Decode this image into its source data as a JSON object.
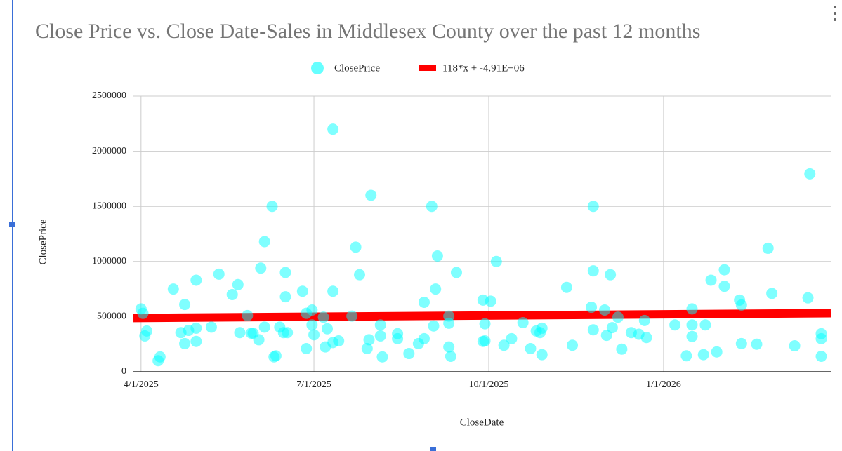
{
  "chart_data": {
    "type": "scatter",
    "title": "Close Price vs. Close Date-Sales in Middlesex County over the past 12 months",
    "xlabel": "CloseDate",
    "ylabel": "ClosePrice",
    "series": [
      {
        "name": "ClosePrice",
        "color": "#00ffff",
        "x": [
          "2025-04-01",
          "2025-04-02",
          "2025-04-03",
          "2025-04-04",
          "2025-04-10",
          "2025-04-11",
          "2025-04-18",
          "2025-04-22",
          "2025-04-24",
          "2025-04-24",
          "2025-04-26",
          "2025-04-30",
          "2025-04-30",
          "2025-04-30",
          "2025-05-08",
          "2025-05-12",
          "2025-05-19",
          "2025-05-22",
          "2025-05-23",
          "2025-05-27",
          "2025-05-29",
          "2025-05-30",
          "2025-06-02",
          "2025-06-03",
          "2025-06-05",
          "2025-06-05",
          "2025-06-09",
          "2025-06-10",
          "2025-06-11",
          "2025-06-13",
          "2025-06-15",
          "2025-06-16",
          "2025-06-16",
          "2025-06-17",
          "2025-06-25",
          "2025-06-27",
          "2025-06-27",
          "2025-06-30",
          "2025-06-30",
          "2025-07-01",
          "2025-07-06",
          "2025-07-07",
          "2025-07-08",
          "2025-07-11",
          "2025-07-11",
          "2025-07-11",
          "2025-07-14",
          "2025-07-21",
          "2025-07-23",
          "2025-07-25",
          "2025-07-29",
          "2025-07-30",
          "2025-07-31",
          "2025-08-05",
          "2025-08-05",
          "2025-08-06",
          "2025-08-14",
          "2025-08-14",
          "2025-08-20",
          "2025-08-25",
          "2025-08-28",
          "2025-08-28",
          "2025-09-01",
          "2025-09-02",
          "2025-09-03",
          "2025-09-04",
          "2025-09-10",
          "2025-09-10",
          "2025-09-10",
          "2025-09-11",
          "2025-09-14",
          "2025-09-28",
          "2025-09-28",
          "2025-09-29",
          "2025-09-29",
          "2025-10-02",
          "2025-10-05",
          "2025-10-09",
          "2025-10-13",
          "2025-10-19",
          "2025-10-23",
          "2025-10-26",
          "2025-10-28",
          "2025-10-29",
          "2025-10-29",
          "2025-11-11",
          "2025-11-14",
          "2025-11-24",
          "2025-11-25",
          "2025-11-25",
          "2025-11-25",
          "2025-12-01",
          "2025-12-02",
          "2025-12-04",
          "2025-12-05",
          "2025-12-08",
          "2025-12-10",
          "2025-12-15",
          "2025-12-19",
          "2025-12-22",
          "2025-12-23",
          "2026-01-07",
          "2026-01-13",
          "2026-01-16",
          "2026-01-16",
          "2026-01-16",
          "2026-01-22",
          "2026-01-23",
          "2026-01-26",
          "2026-01-29",
          "2026-02-02",
          "2026-02-02",
          "2026-02-10",
          "2026-02-11",
          "2026-02-11",
          "2026-02-19",
          "2026-02-25",
          "2026-02-27",
          "2026-03-11",
          "2026-03-18",
          "2026-03-19",
          "2026-03-25",
          "2026-03-25",
          "2026-03-25"
        ],
        "values": [
          570000,
          530000,
          325000,
          370000,
          100000,
          135000,
          750000,
          355000,
          610000,
          255000,
          375000,
          830000,
          395000,
          275000,
          405000,
          885000,
          700000,
          790000,
          355000,
          510000,
          350000,
          350000,
          290000,
          940000,
          1180000,
          405000,
          1500000,
          135000,
          145000,
          405000,
          355000,
          900000,
          680000,
          355000,
          730000,
          210000,
          530000,
          560000,
          425000,
          335000,
          495000,
          225000,
          390000,
          2200000,
          730000,
          265000,
          280000,
          505000,
          1130000,
          880000,
          210000,
          290000,
          1600000,
          425000,
          325000,
          135000,
          345000,
          300000,
          165000,
          255000,
          300000,
          630000,
          1500000,
          415000,
          750000,
          1050000,
          505000,
          440000,
          225000,
          140000,
          900000,
          650000,
          275000,
          435000,
          280000,
          640000,
          1000000,
          240000,
          300000,
          445000,
          210000,
          370000,
          355000,
          395000,
          155000,
          765000,
          240000,
          585000,
          1500000,
          915000,
          380000,
          560000,
          330000,
          880000,
          400000,
          495000,
          205000,
          355000,
          340000,
          465000,
          310000,
          425000,
          145000,
          570000,
          425000,
          320000,
          155000,
          425000,
          830000,
          180000,
          925000,
          775000,
          650000,
          605000,
          255000,
          250000,
          1120000,
          710000,
          235000,
          670000,
          1795000,
          345000,
          300000,
          140000
        ]
      }
    ],
    "trendline": {
      "name": "118*x + -4.91E+06",
      "slope": 118,
      "intercept": -4910000,
      "color": "#ff0000"
    },
    "xlim": [
      "2025-03-28",
      "2026-03-30"
    ],
    "xticks": [
      {
        "value": "2025-04-01",
        "label": "4/1/2025"
      },
      {
        "value": "2025-07-01",
        "label": "7/1/2025"
      },
      {
        "value": "2025-10-01",
        "label": "10/1/2025"
      },
      {
        "value": "2026-01-01",
        "label": "1/1/2026"
      }
    ],
    "ylim": [
      0,
      2500000
    ],
    "yticks": [
      0,
      500000,
      1000000,
      1500000,
      2000000,
      2500000
    ],
    "grid": true
  }
}
